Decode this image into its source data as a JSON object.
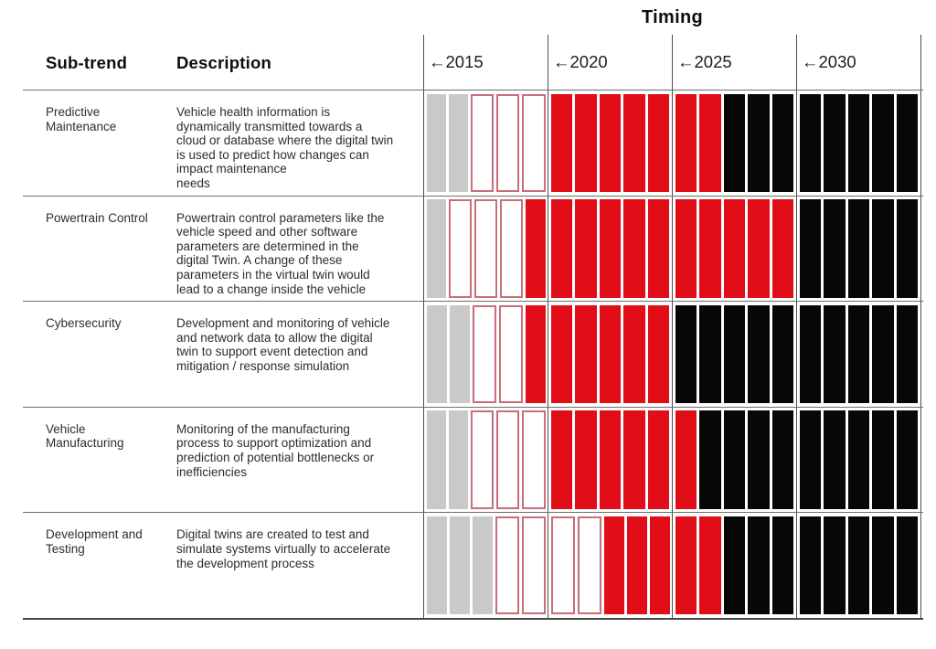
{
  "table_header": {
    "subtrend": "Sub-trend",
    "description": "Description"
  },
  "chart_data": {
    "type": "heatmap",
    "title": "Timing",
    "x_axis": {
      "section_labels": [
        "←2015",
        "←2020",
        "←2025",
        "←2030"
      ],
      "cells_per_section": 5
    },
    "cell_states": [
      "gray",
      "outline",
      "red",
      "black"
    ],
    "rows": [
      {
        "subtrend": "Predictive\nMaintenance",
        "description": "Vehicle health information is\ndynamically transmitted towards a\ncloud or database where the digital twin\nis used to predict how changes can\nimpact maintenance\nneeds",
        "cells": [
          "gray",
          "gray",
          "outline",
          "outline",
          "outline",
          "red",
          "red",
          "red",
          "red",
          "red",
          "red",
          "red",
          "black",
          "black",
          "black",
          "black",
          "black",
          "black",
          "black",
          "black"
        ]
      },
      {
        "subtrend": "Powertrain Control",
        "description": "Powertrain control parameters like the\nvehicle speed and other software\nparameters are determined in the\ndigital Twin. A change of these\nparameters in the virtual twin would\nlead to a change inside the vehicle",
        "cells": [
          "gray",
          "outline",
          "outline",
          "outline",
          "red",
          "red",
          "red",
          "red",
          "red",
          "red",
          "red",
          "red",
          "red",
          "red",
          "red",
          "black",
          "black",
          "black",
          "black",
          "black"
        ]
      },
      {
        "subtrend": "Cybersecurity",
        "description": "Development and monitoring of vehicle\nand network data to allow the digital\ntwin to support event detection and\nmitigation / response simulation",
        "cells": [
          "gray",
          "gray",
          "outline",
          "outline",
          "red",
          "red",
          "red",
          "red",
          "red",
          "red",
          "black",
          "black",
          "black",
          "black",
          "black",
          "black",
          "black",
          "black",
          "black",
          "black"
        ]
      },
      {
        "subtrend": "Vehicle\nManufacturing",
        "description": "Monitoring of the manufacturing\nprocess to support optimization and\nprediction of potential bottlenecks or\ninefficiencies",
        "cells": [
          "gray",
          "gray",
          "outline",
          "outline",
          "outline",
          "red",
          "red",
          "red",
          "red",
          "red",
          "red",
          "black",
          "black",
          "black",
          "black",
          "black",
          "black",
          "black",
          "black",
          "black"
        ]
      },
      {
        "subtrend": "Development and\nTesting",
        "description": "Digital twins are created to test and\nsimulate systems virtually to accelerate\nthe development process",
        "cells": [
          "gray",
          "gray",
          "gray",
          "outline",
          "outline",
          "outline",
          "outline",
          "red",
          "red",
          "red",
          "red",
          "red",
          "black",
          "black",
          "black",
          "black",
          "black",
          "black",
          "black",
          "black"
        ]
      }
    ]
  },
  "colors": {
    "cell_gray": "#c9c9c9",
    "cell_red": "#e20e17",
    "cell_black": "#070707",
    "cell_outline_border": "#c96d79"
  }
}
